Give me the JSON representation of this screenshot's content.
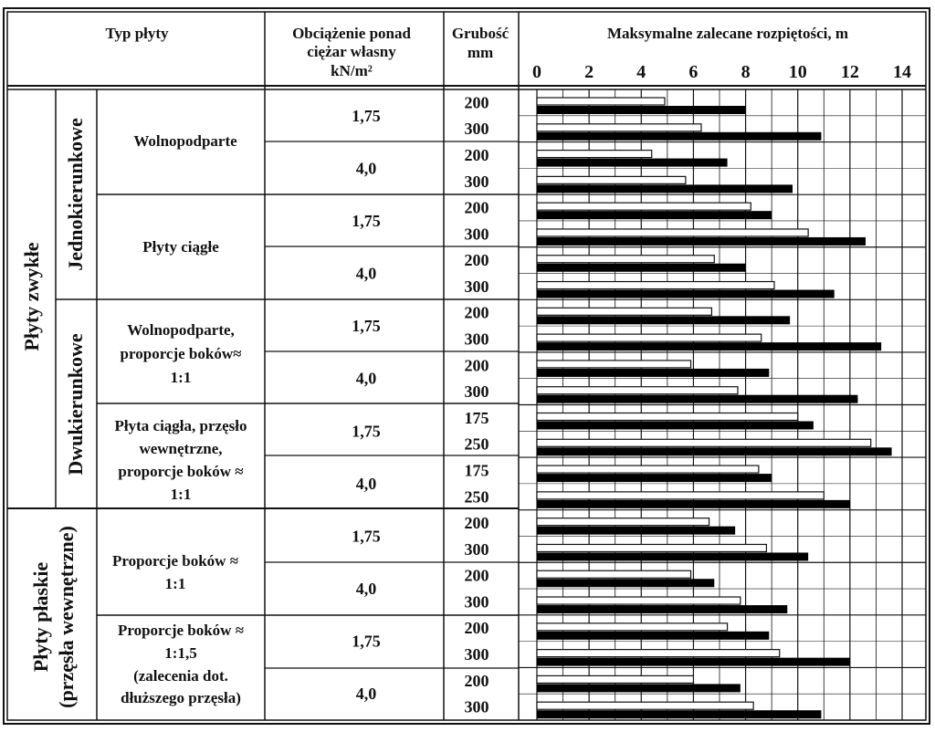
{
  "header": {
    "col1": "Typ płyty",
    "col2_lines": [
      "Obciążenie ponad",
      "ciężar własny",
      "kN/m²"
    ],
    "col3_lines": [
      "Grubość",
      "mm"
    ],
    "col4": "Maksymalne zalecane rozpiętości, m"
  },
  "groups": [
    {
      "label": "Płyty zwykłe"
    },
    {
      "label_lines": [
        "Płyty płaskie",
        "(przęsła wewnętrzne)"
      ]
    }
  ],
  "subgroups": [
    {
      "label": "Jednokierunkowe"
    },
    {
      "label": "Dwukierunkowe"
    }
  ],
  "types": [
    {
      "lines": [
        "Wolnopodparte"
      ]
    },
    {
      "lines": [
        "Płyty ciągłe"
      ]
    },
    {
      "lines": [
        "Wolnopodparte,",
        "proporcje boków≈",
        "1:1"
      ]
    },
    {
      "lines": [
        "Płyta ciągła, przęsło",
        "wewnętrzne,",
        "proporcje boków ≈",
        "1:1"
      ]
    },
    {
      "lines": [
        "Proporcje boków ≈",
        "1:1"
      ]
    },
    {
      "lines": [
        "Proporcje boków ≈",
        "1:1,5",
        "(zalecenia dot.",
        "dłuższego przęsła)"
      ]
    }
  ],
  "chart_data": {
    "type": "bar",
    "orientation": "horizontal",
    "title": "Maksymalne zalecane rozpiętości, m",
    "xlim": [
      0,
      14
    ],
    "xticks": [
      0,
      2,
      4,
      6,
      8,
      10,
      12,
      14
    ],
    "grid": true,
    "series": [
      {
        "name": "white bar",
        "color": "#ffffff"
      },
      {
        "name": "black bar",
        "color": "#000000"
      }
    ],
    "rows": [
      {
        "load": "1,75",
        "thickness": "200",
        "white": 4.9,
        "black": 8.0
      },
      {
        "thickness": "300",
        "white": 6.3,
        "black": 10.9
      },
      {
        "load": "4,0",
        "thickness": "200",
        "white": 4.4,
        "black": 7.3
      },
      {
        "thickness": "300",
        "white": 5.7,
        "black": 9.8
      },
      {
        "load": "1,75",
        "thickness": "200",
        "white": 8.2,
        "black": 9.0
      },
      {
        "thickness": "300",
        "white": 10.4,
        "black": 12.6
      },
      {
        "load": "4,0",
        "thickness": "200",
        "white": 6.8,
        "black": 8.0
      },
      {
        "thickness": "300",
        "white": 9.1,
        "black": 11.4
      },
      {
        "load": "1,75",
        "thickness": "200",
        "white": 6.7,
        "black": 9.7
      },
      {
        "thickness": "300",
        "white": 8.6,
        "black": 13.2
      },
      {
        "load": "4,0",
        "thickness": "200",
        "white": 5.9,
        "black": 8.9
      },
      {
        "thickness": "300",
        "white": 7.7,
        "black": 12.3
      },
      {
        "load": "1,75",
        "thickness": "175",
        "white": 10.0,
        "black": 10.6
      },
      {
        "thickness": "250",
        "white": 12.8,
        "black": 13.6
      },
      {
        "load": "4,0",
        "thickness": "175",
        "white": 8.5,
        "black": 9.0
      },
      {
        "thickness": "250",
        "white": 11.0,
        "black": 12.0
      },
      {
        "load": "1,75",
        "thickness": "200",
        "white": 6.6,
        "black": 7.6
      },
      {
        "thickness": "300",
        "white": 8.8,
        "black": 10.4
      },
      {
        "load": "4,0",
        "thickness": "200",
        "white": 5.9,
        "black": 6.8
      },
      {
        "thickness": "300",
        "white": 7.8,
        "black": 9.6
      },
      {
        "load": "1,75",
        "thickness": "200",
        "white": 7.3,
        "black": 8.9
      },
      {
        "thickness": "300",
        "white": 9.3,
        "black": 12.0
      },
      {
        "load": "4,0",
        "thickness": "200",
        "white": 6.0,
        "black": 7.8
      },
      {
        "thickness": "300",
        "white": 8.3,
        "black": 10.9
      }
    ]
  }
}
